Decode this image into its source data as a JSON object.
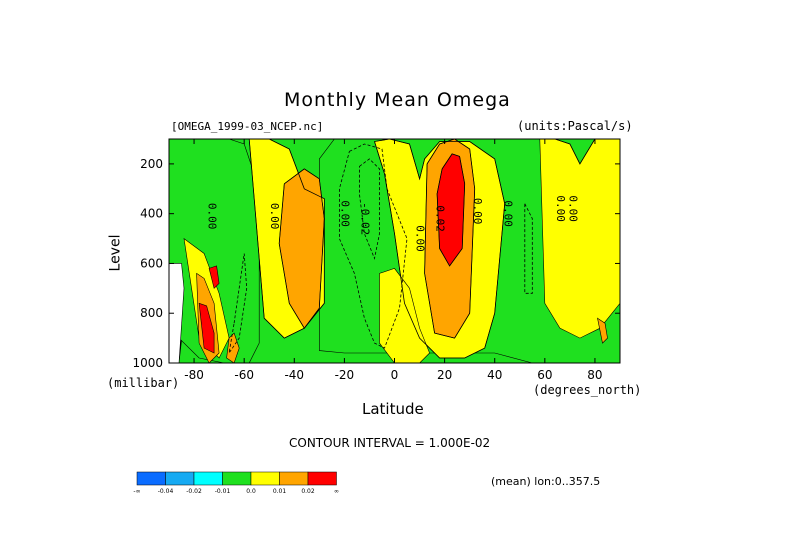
{
  "chart_data": {
    "type": "heatmap",
    "title": "Monthly Mean Omega",
    "dataset_label": "[OMEGA_1999-03_NCEP.nc]",
    "units_label": "(units:Pascal/s)",
    "xlabel": "Latitude",
    "x_units": "(degrees_north)",
    "ylabel": "Level",
    "y_units": "(millibar)",
    "xlim": [
      -90,
      90
    ],
    "ylim": [
      1000,
      100
    ],
    "x_ticks": [
      -80,
      -60,
      -40,
      -20,
      0,
      20,
      40,
      60,
      80
    ],
    "y_ticks": [
      200,
      400,
      600,
      800,
      1000
    ],
    "contour_interval_label": "CONTOUR INTERVAL = 1.000E-02",
    "averaging_label": "(mean) lon:0..357.5",
    "contour_labels": [
      {
        "text": "0.00",
        "x": -73,
        "y": 410
      },
      {
        "text": "0.00",
        "x": -48,
        "y": 410
      },
      {
        "text": "0.00",
        "x": -20,
        "y": 400
      },
      {
        "text": "-0.02",
        "x": -12,
        "y": 420
      },
      {
        "text": "0.00",
        "x": 10,
        "y": 500
      },
      {
        "text": "0.02",
        "x": 18,
        "y": 420
      },
      {
        "text": "0.00",
        "x": 33,
        "y": 390
      },
      {
        "text": "0.00",
        "x": 45,
        "y": 400
      },
      {
        "text": "0.00",
        "x": 66,
        "y": 380
      },
      {
        "text": "0.00",
        "x": 71,
        "y": 380
      }
    ],
    "legend": {
      "bins": [
        {
          "label": "-∞",
          "color": "#0a6cff"
        },
        {
          "label": "-0.04",
          "color": "#16aaf2"
        },
        {
          "label": "-0.02",
          "color": "#00ffff"
        },
        {
          "label": "-0.01",
          "color": "#1fe01f"
        },
        {
          "label": "0.0",
          "color": "#ffff00"
        },
        {
          "label": "0.01",
          "color": "#ffa500"
        },
        {
          "label": "0.02",
          "color": "#ff0000"
        }
      ],
      "end_label": "∞"
    },
    "regions": [
      {
        "level": "low",
        "x": [
          -86,
          -84,
          -83,
          -85,
          -88
        ],
        "y": [
          1000,
          820,
          700,
          700,
          1000
        ]
      },
      {
        "level": "blue",
        "x": [
          -90,
          -87,
          -87,
          -90
        ],
        "y": [
          250,
          300,
          560,
          600
        ]
      },
      {
        "level": "cyan",
        "x": [
          -64,
          -60,
          -59,
          -62,
          -66
        ],
        "y": [
          840,
          560,
          700,
          900,
          960
        ]
      },
      {
        "level": "cyan",
        "x": [
          -18,
          -12,
          -5,
          -3,
          5,
          2,
          -4,
          -8,
          -12,
          -16,
          -22,
          -22
        ],
        "y": [
          150,
          120,
          140,
          300,
          500,
          780,
          940,
          920,
          820,
          640,
          500,
          300
        ]
      },
      {
        "level": "blue",
        "x": [
          -14,
          -10,
          -6,
          -6,
          -8,
          -12,
          -14
        ],
        "y": [
          210,
          180,
          220,
          480,
          580,
          480,
          320
        ]
      },
      {
        "level": "cyan",
        "x": [
          9,
          11,
          12,
          11,
          9,
          8
        ],
        "y": [
          300,
          420,
          560,
          620,
          560,
          430
        ]
      },
      {
        "level": "cyan",
        "x": [
          11,
          13,
          14,
          13
        ],
        "y": [
          780,
          820,
          900,
          920
        ]
      },
      {
        "level": "cyan",
        "x": [
          52,
          55,
          55,
          52
        ],
        "y": [
          360,
          420,
          720,
          720
        ]
      },
      {
        "level": "cyan",
        "x": [
          87,
          90,
          90,
          87
        ],
        "y": [
          820,
          820,
          1000,
          1000
        ]
      },
      {
        "level": "green",
        "x": [
          -90,
          -86,
          -80,
          -74,
          -66,
          -60,
          -54,
          -54,
          -58,
          -62,
          -68,
          -78,
          -86,
          -90
        ],
        "y": [
          100,
          100,
          100,
          100,
          100,
          120,
          300,
          920,
          1000,
          1000,
          1000,
          980,
          900,
          760
        ]
      },
      {
        "level": "green",
        "x": [
          -30,
          -24,
          -14,
          -4,
          10,
          18,
          40,
          50,
          60,
          68,
          80,
          90,
          90,
          80,
          70,
          55,
          40,
          25,
          10,
          -5,
          -20,
          -30
        ],
        "y": [
          180,
          100,
          100,
          100,
          100,
          100,
          100,
          100,
          100,
          100,
          100,
          100,
          1000,
          1000,
          1000,
          1000,
          960,
          960,
          960,
          960,
          960,
          950
        ]
      },
      {
        "level": "yellow",
        "x": [
          -58,
          -50,
          -42,
          -36,
          -28,
          -28,
          -36,
          -44,
          -52
        ],
        "y": [
          100,
          100,
          140,
          300,
          340,
          760,
          860,
          900,
          820
        ]
      },
      {
        "level": "yellow",
        "x": [
          -8,
          -2,
          6,
          10,
          12,
          18,
          30,
          40,
          44,
          40,
          36,
          28,
          18,
          10,
          4,
          0,
          -4
        ],
        "y": [
          110,
          100,
          120,
          260,
          180,
          110,
          110,
          180,
          360,
          800,
          940,
          980,
          980,
          900,
          760,
          480,
          240
        ]
      },
      {
        "level": "yellow",
        "x": [
          -6,
          0,
          6,
          10,
          14,
          10,
          0,
          -6
        ],
        "y": [
          640,
          620,
          700,
          860,
          960,
          1000,
          1000,
          920
        ]
      },
      {
        "level": "yellow",
        "x": [
          58,
          64,
          70,
          74,
          80,
          90,
          90,
          82,
          74,
          66,
          60
        ],
        "y": [
          100,
          100,
          120,
          200,
          100,
          100,
          760,
          860,
          900,
          860,
          760
        ]
      },
      {
        "level": "yellow",
        "x": [
          -84,
          -76,
          -70,
          -66,
          -70,
          -78
        ],
        "y": [
          500,
          560,
          720,
          900,
          980,
          900
        ]
      },
      {
        "level": "orange",
        "x": [
          -44,
          -36,
          -30,
          -28,
          -30,
          -36,
          -42,
          -46
        ],
        "y": [
          280,
          220,
          260,
          420,
          780,
          860,
          760,
          520
        ]
      },
      {
        "level": "orange",
        "x": [
          13,
          18,
          24,
          30,
          32,
          30,
          24,
          16,
          12
        ],
        "y": [
          200,
          120,
          100,
          140,
          300,
          800,
          900,
          880,
          640
        ]
      },
      {
        "level": "orange",
        "x": [
          -79,
          -76,
          -72,
          -70,
          -74,
          -78
        ],
        "y": [
          640,
          660,
          760,
          960,
          1000,
          920
        ]
      },
      {
        "level": "orange",
        "x": [
          -66,
          -64,
          -62,
          -64,
          -67
        ],
        "y": [
          900,
          880,
          940,
          1000,
          980
        ]
      },
      {
        "level": "orange",
        "x": [
          81,
          84,
          85,
          83
        ],
        "y": [
          820,
          840,
          900,
          920
        ]
      },
      {
        "level": "red",
        "x": [
          19,
          23,
          26,
          28,
          27,
          22,
          18,
          17
        ],
        "y": [
          220,
          160,
          170,
          280,
          540,
          610,
          540,
          320
        ]
      },
      {
        "level": "red",
        "x": [
          -78,
          -75,
          -72,
          -72,
          -76
        ],
        "y": [
          760,
          770,
          880,
          960,
          940
        ]
      },
      {
        "level": "red",
        "x": [
          -74,
          -71,
          -70,
          -72
        ],
        "y": [
          620,
          610,
          680,
          700
        ]
      },
      {
        "level": "white",
        "x": [
          -90,
          -85,
          -84,
          -86,
          -90
        ],
        "y": [
          600,
          600,
          700,
          1000,
          1000
        ]
      }
    ],
    "dashed_contours": [
      {
        "x": [
          -18,
          -12,
          -5,
          -3,
          5,
          2,
          -4,
          -8,
          -12,
          -16,
          -22,
          -22,
          -18
        ],
        "y": [
          150,
          120,
          140,
          300,
          500,
          780,
          940,
          920,
          820,
          640,
          500,
          300,
          150
        ]
      },
      {
        "x": [
          -14,
          -10,
          -6,
          -6,
          -8,
          -12,
          -14,
          -14
        ],
        "y": [
          210,
          180,
          220,
          480,
          580,
          480,
          320,
          210
        ]
      },
      {
        "x": [
          52,
          55,
          55,
          52,
          52
        ],
        "y": [
          360,
          420,
          720,
          720,
          360
        ]
      },
      {
        "x": [
          -64,
          -60,
          -59,
          -62,
          -66,
          -64
        ],
        "y": [
          840,
          560,
          700,
          900,
          960,
          840
        ]
      }
    ],
    "solid_contours": [
      {
        "x": [
          -44,
          -36,
          -30,
          -28,
          -30,
          -36,
          -42,
          -46,
          -44
        ],
        "y": [
          280,
          220,
          260,
          420,
          780,
          860,
          760,
          520,
          280
        ]
      },
      {
        "x": [
          13,
          18,
          24,
          30,
          32,
          30,
          24,
          16,
          12,
          13
        ],
        "y": [
          200,
          120,
          100,
          140,
          300,
          800,
          900,
          880,
          640,
          200
        ]
      },
      {
        "x": [
          19,
          23,
          26,
          28,
          27,
          22,
          18,
          17,
          19
        ],
        "y": [
          220,
          160,
          170,
          280,
          540,
          610,
          540,
          320,
          220
        ]
      },
      {
        "x": [
          -58,
          -50,
          -42,
          -36,
          -28,
          -28,
          -36,
          -44,
          -52,
          -58
        ],
        "y": [
          100,
          100,
          140,
          300,
          340,
          760,
          860,
          900,
          820,
          100
        ]
      },
      {
        "x": [
          58,
          64,
          70,
          74,
          80,
          90
        ],
        "y": [
          100,
          100,
          120,
          200,
          100,
          100
        ]
      },
      {
        "x": [
          -8,
          -2,
          6,
          10,
          12,
          18,
          30,
          40,
          44,
          40,
          36,
          28,
          18,
          10,
          4,
          0,
          -4,
          -8
        ],
        "y": [
          110,
          100,
          120,
          260,
          180,
          110,
          110,
          180,
          360,
          800,
          940,
          980,
          980,
          900,
          760,
          480,
          240,
          110
        ]
      }
    ]
  }
}
